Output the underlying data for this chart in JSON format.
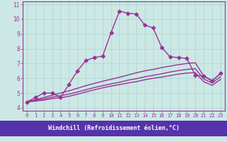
{
  "xlabel": "Windchill (Refroidissement éolien,°C)",
  "ylabel": "",
  "background_color": "#cce8e4",
  "plot_bg_color": "#cce8e4",
  "grid_color": "#aad4d0",
  "line_color": "#993399",
  "xlabel_bg": "#6633aa",
  "xlabel_fg": "#ffffff",
  "xlim": [
    -0.5,
    23.5
  ],
  "ylim": [
    3.8,
    11.2
  ],
  "xticks": [
    0,
    1,
    2,
    3,
    4,
    5,
    6,
    7,
    8,
    9,
    10,
    11,
    12,
    13,
    14,
    15,
    16,
    17,
    18,
    19,
    20,
    21,
    22,
    23
  ],
  "yticks": [
    4,
    5,
    6,
    7,
    8,
    9,
    10,
    11
  ],
  "lines": [
    {
      "x": [
        0,
        1,
        2,
        3,
        4,
        5,
        6,
        7,
        8,
        9,
        10,
        11,
        12,
        13,
        14,
        15,
        16,
        17,
        18,
        19,
        20,
        21,
        22,
        23
      ],
      "y": [
        4.4,
        4.7,
        5.0,
        5.0,
        4.7,
        5.6,
        6.5,
        7.2,
        7.4,
        7.5,
        9.1,
        10.55,
        10.4,
        10.35,
        9.6,
        9.4,
        8.1,
        7.45,
        7.4,
        7.35,
        6.2,
        6.15,
        5.8,
        6.35
      ],
      "marker": "D",
      "marker_size": 2.5,
      "linewidth": 1.0
    },
    {
      "x": [
        0,
        1,
        2,
        3,
        4,
        5,
        6,
        7,
        8,
        9,
        10,
        11,
        12,
        13,
        14,
        15,
        16,
        17,
        18,
        19,
        20,
        21,
        22,
        23
      ],
      "y": [
        4.4,
        4.55,
        4.7,
        4.85,
        5.0,
        5.15,
        5.32,
        5.5,
        5.65,
        5.8,
        5.93,
        6.07,
        6.22,
        6.37,
        6.5,
        6.6,
        6.72,
        6.82,
        6.92,
        7.0,
        7.05,
        6.15,
        5.85,
        6.3
      ],
      "marker": null,
      "marker_size": 0,
      "linewidth": 1.0
    },
    {
      "x": [
        0,
        1,
        2,
        3,
        4,
        5,
        6,
        7,
        8,
        9,
        10,
        11,
        12,
        13,
        14,
        15,
        16,
        17,
        18,
        19,
        20,
        21,
        22,
        23
      ],
      "y": [
        4.4,
        4.5,
        4.6,
        4.72,
        4.82,
        4.93,
        5.07,
        5.22,
        5.37,
        5.5,
        5.62,
        5.73,
        5.87,
        5.97,
        6.1,
        6.2,
        6.3,
        6.42,
        6.52,
        6.6,
        6.65,
        5.95,
        5.68,
        6.1
      ],
      "marker": null,
      "marker_size": 0,
      "linewidth": 1.0
    },
    {
      "x": [
        0,
        1,
        2,
        3,
        4,
        5,
        6,
        7,
        8,
        9,
        10,
        11,
        12,
        13,
        14,
        15,
        16,
        17,
        18,
        19,
        20,
        21,
        22,
        23
      ],
      "y": [
        4.4,
        4.45,
        4.52,
        4.62,
        4.68,
        4.78,
        4.92,
        5.07,
        5.22,
        5.35,
        5.47,
        5.57,
        5.68,
        5.77,
        5.9,
        6.0,
        6.08,
        6.18,
        6.28,
        6.35,
        6.38,
        5.77,
        5.52,
        5.92
      ],
      "marker": null,
      "marker_size": 0,
      "linewidth": 1.0
    }
  ]
}
